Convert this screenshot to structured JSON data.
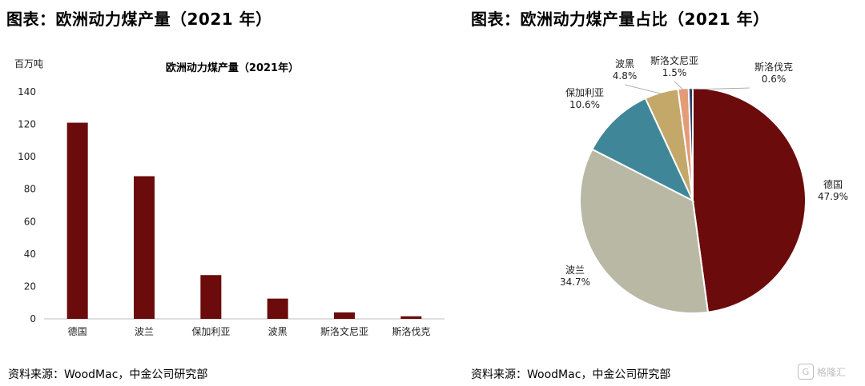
{
  "left": {
    "figure_title": "图表：欧洲动力煤产量（2021 年）",
    "source": "资料来源：WoodMac，中金公司研究部"
  },
  "right": {
    "figure_title": "图表：欧洲动力煤产量占比（2021 年）",
    "source": "资料来源：WoodMac，中金公司研究部"
  },
  "watermark": {
    "text": "格隆汇"
  },
  "colors": {
    "bar": "#6b0b0b",
    "grid": "#d9d9d9"
  },
  "chart_data": [
    {
      "type": "bar",
      "title": "欧洲动力煤产量（2021年）",
      "ylabel": "百万吨",
      "xlabel": "",
      "categories": [
        "德国",
        "波兰",
        "保加利亚",
        "波黑",
        "斯洛文尼亚",
        "斯洛伐克"
      ],
      "values": [
        121,
        88,
        27,
        12.5,
        4,
        1.6
      ],
      "ylim": [
        0,
        140
      ],
      "yticks": [
        0,
        20,
        40,
        60,
        80,
        100,
        120,
        140
      ],
      "grid": false,
      "color": "#6b0b0b"
    },
    {
      "type": "pie",
      "title": "",
      "labels": [
        "德国",
        "波兰",
        "保加利亚",
        "波黑",
        "斯洛文尼亚",
        "斯洛伐克"
      ],
      "values": [
        47.9,
        34.7,
        10.6,
        4.8,
        1.5,
        0.6
      ],
      "value_labels": [
        "47.9%",
        "34.7%",
        "10.6%",
        "4.8%",
        "1.5%",
        "0.6%"
      ],
      "colors": [
        "#6b0b0b",
        "#b9b8a5",
        "#3f8798",
        "#c3a86a",
        "#e39c78",
        "#2e3c66"
      ]
    }
  ]
}
